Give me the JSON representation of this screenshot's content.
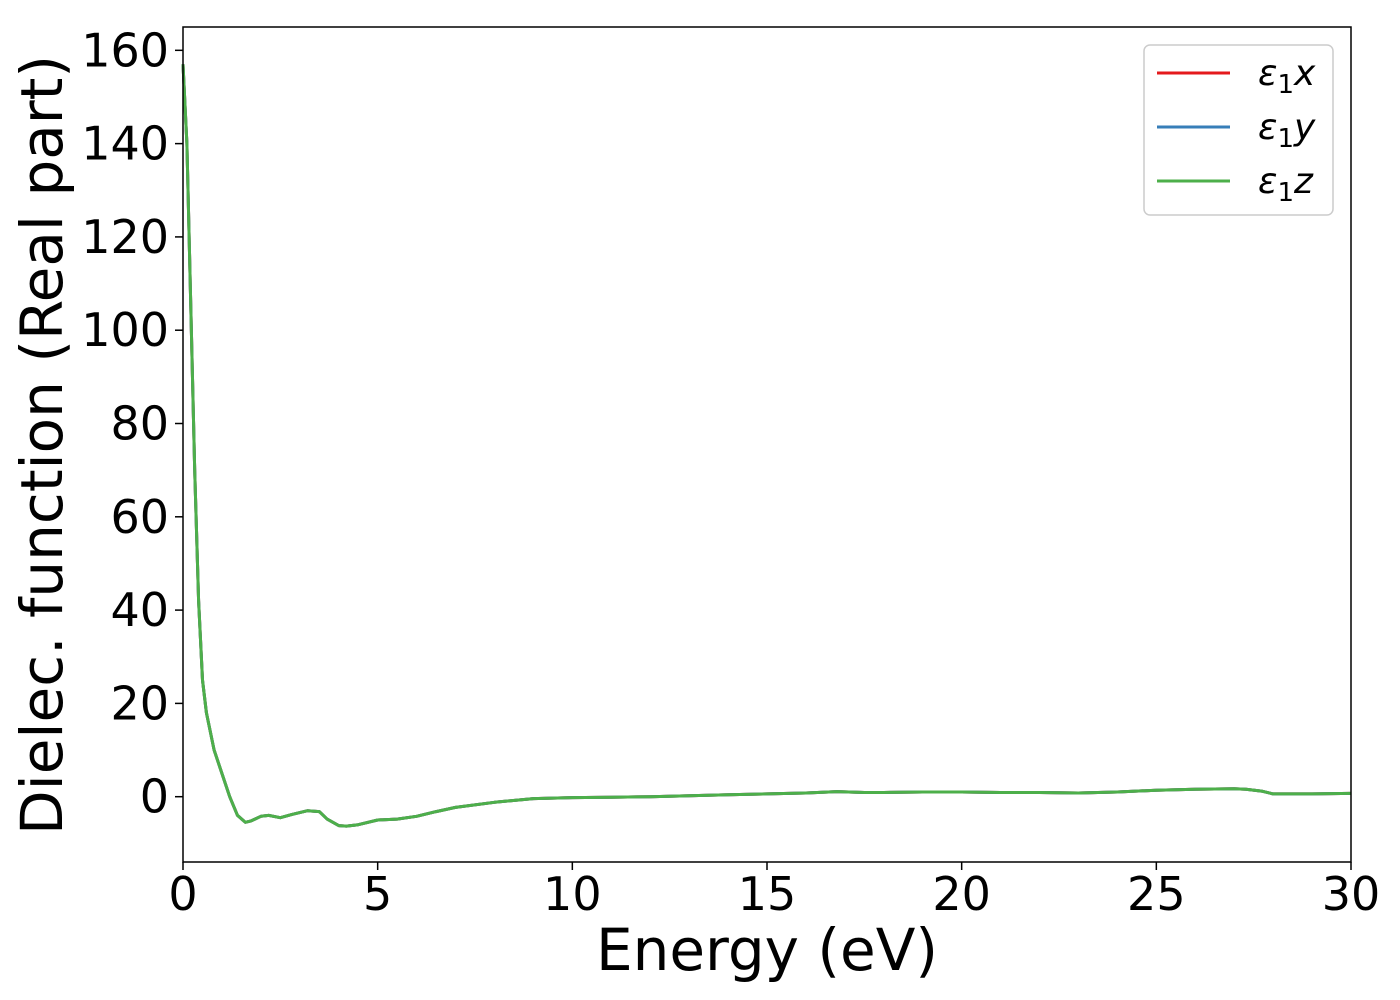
{
  "chart_data": {
    "type": "line",
    "title": "",
    "xlabel": "Energy (eV)",
    "ylabel": "Dielec. function (Real part)",
    "xlim": [
      0,
      30
    ],
    "ylim": [
      -14,
      165
    ],
    "xticks": [
      0,
      5,
      10,
      15,
      20,
      25,
      30
    ],
    "yticks": [
      0,
      20,
      40,
      60,
      80,
      100,
      120,
      140,
      160
    ],
    "grid": false,
    "legend_position": "top-right",
    "x": [
      0.0,
      0.1,
      0.2,
      0.3,
      0.4,
      0.5,
      0.6,
      0.8,
      1.0,
      1.2,
      1.4,
      1.6,
      1.75,
      2.0,
      2.2,
      2.5,
      2.8,
      3.2,
      3.5,
      3.7,
      4.0,
      4.2,
      4.5,
      5.0,
      5.5,
      6.0,
      6.5,
      7.0,
      8.0,
      9.0,
      10.0,
      11.0,
      12.0,
      13.0,
      14.0,
      15.0,
      16.0,
      16.8,
      17.5,
      18.0,
      19.0,
      20.0,
      21.0,
      22.0,
      23.0,
      24.0,
      25.0,
      26.0,
      27.0,
      27.3,
      27.7,
      28.0,
      28.5,
      29.0,
      30.0
    ],
    "series": [
      {
        "name": "ε₁x",
        "color": "#e41a1c",
        "values": [
          157,
          140,
          105,
          70,
          42,
          25,
          18,
          10,
          5,
          0,
          -4,
          -5.5,
          -5.2,
          -4.2,
          -4.0,
          -4.5,
          -3.8,
          -3.0,
          -3.2,
          -4.8,
          -6.2,
          -6.3,
          -6.0,
          -5.0,
          -4.8,
          -4.2,
          -3.2,
          -2.3,
          -1.2,
          -0.4,
          -0.2,
          -0.1,
          0.0,
          0.2,
          0.4,
          0.6,
          0.8,
          1.1,
          0.9,
          0.9,
          1.0,
          1.0,
          0.9,
          0.9,
          0.8,
          1.0,
          1.4,
          1.6,
          1.7,
          1.6,
          1.2,
          0.6,
          0.6,
          0.6,
          0.7
        ]
      },
      {
        "name": "ε₁y",
        "color": "#377eb8",
        "values": [
          157,
          140,
          105,
          70,
          42,
          25,
          18,
          10,
          5,
          0,
          -4,
          -5.5,
          -5.2,
          -4.2,
          -4.0,
          -4.5,
          -3.8,
          -3.0,
          -3.2,
          -4.8,
          -6.2,
          -6.3,
          -6.0,
          -5.0,
          -4.8,
          -4.2,
          -3.2,
          -2.3,
          -1.2,
          -0.4,
          -0.2,
          -0.1,
          0.0,
          0.2,
          0.4,
          0.6,
          0.8,
          1.1,
          0.9,
          0.9,
          1.0,
          1.0,
          0.9,
          0.9,
          0.8,
          1.0,
          1.4,
          1.6,
          1.7,
          1.6,
          1.2,
          0.6,
          0.6,
          0.6,
          0.7
        ]
      },
      {
        "name": "ε₁z",
        "color": "#4daf4a",
        "values": [
          157,
          140,
          105,
          70,
          42,
          25,
          18,
          10,
          5,
          0,
          -4,
          -5.5,
          -5.2,
          -4.2,
          -4.0,
          -4.5,
          -3.8,
          -3.0,
          -3.2,
          -4.8,
          -6.2,
          -6.3,
          -6.0,
          -5.0,
          -4.8,
          -4.2,
          -3.2,
          -2.3,
          -1.2,
          -0.4,
          -0.2,
          -0.1,
          0.0,
          0.2,
          0.4,
          0.6,
          0.8,
          1.1,
          0.9,
          0.9,
          1.0,
          1.0,
          0.9,
          0.9,
          0.8,
          1.0,
          1.4,
          1.6,
          1.7,
          1.6,
          1.2,
          0.6,
          0.6,
          0.6,
          0.7
        ]
      }
    ],
    "legend": [
      {
        "symbol": "ε",
        "sub": "1",
        "axis": "x"
      },
      {
        "symbol": "ε",
        "sub": "1",
        "axis": "y"
      },
      {
        "symbol": "ε",
        "sub": "1",
        "axis": "z"
      }
    ]
  }
}
